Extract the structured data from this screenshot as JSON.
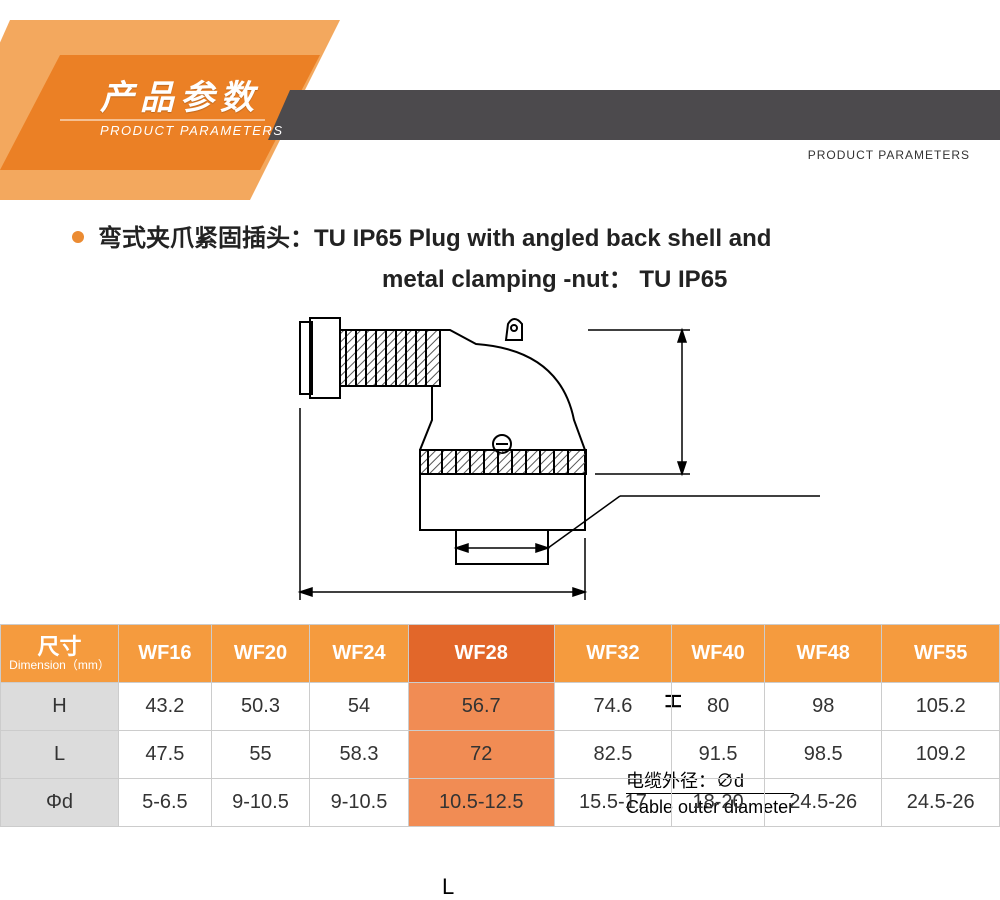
{
  "banner": {
    "title_cn": "产品参数",
    "title_en": "PRODUCT PARAMETERS",
    "right_label": "PRODUCT PARAMETERS",
    "poly1_fill": "#f3a85e",
    "poly2_fill": "#eb8025",
    "bar_fill": "#4c4a4d"
  },
  "heading": {
    "line1": "弯式夹爪紧固插头：TU  IP65  Plug with angled back shell and",
    "line2": "metal clamping -nut： TU  IP65",
    "bullet_color": "#eb8b32"
  },
  "diagram": {
    "cable_label_cn": "电缆外径：∅d",
    "cable_label_en": "Cable outer diameter",
    "dim_L": "L",
    "dim_H": "H"
  },
  "table": {
    "header_bg": "#f59b3e",
    "highlight_bg": "#f18c54",
    "highlight_header_bg": "#e2672a",
    "rowhead_bg": "#dcdcdc",
    "dim_label_cn": "尺寸",
    "dim_label_en": "Dimension（mm）",
    "models": [
      "WF16",
      "WF20",
      "WF24",
      "WF28",
      "WF32",
      "WF40",
      "WF48",
      "WF55"
    ],
    "highlight_index": 3,
    "rows": [
      {
        "label": "H",
        "values": [
          "43.2",
          "50.3",
          "54",
          "56.7",
          "74.6",
          "80",
          "98",
          "105.2"
        ]
      },
      {
        "label": "L",
        "values": [
          "47.5",
          "55",
          "58.3",
          "72",
          "82.5",
          "91.5",
          "98.5",
          "109.2"
        ]
      },
      {
        "label": "Φd",
        "values": [
          "5-6.5",
          "9-10.5",
          "9-10.5",
          "10.5-12.5",
          "15.5-17",
          "18-20",
          "24.5-26",
          "24.5-26"
        ]
      }
    ]
  }
}
